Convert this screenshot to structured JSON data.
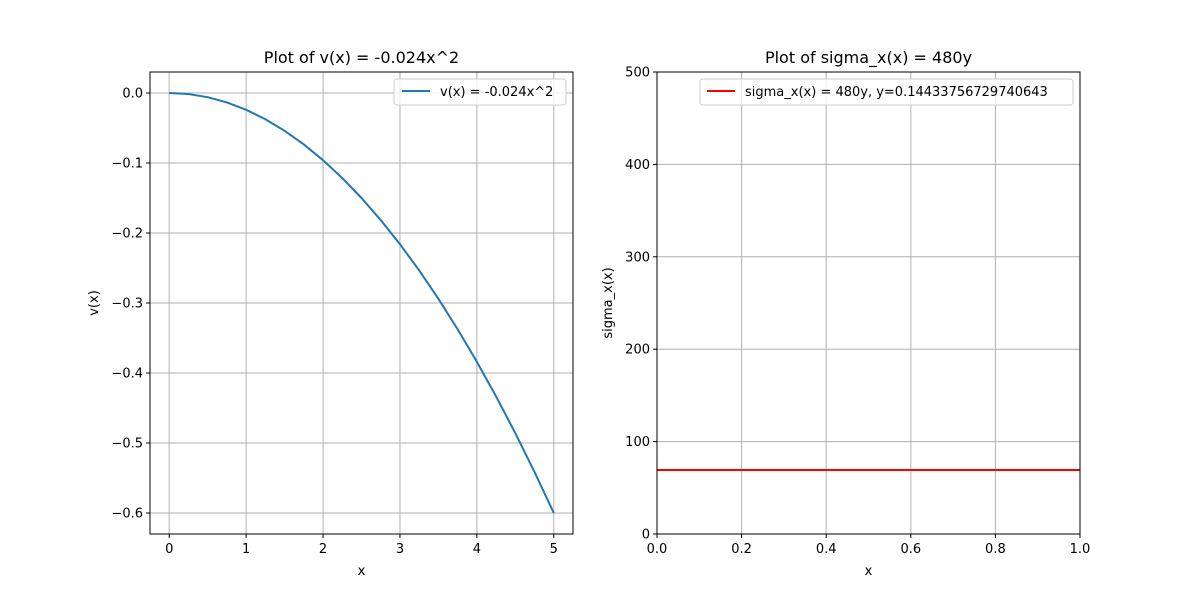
{
  "chart_data": [
    {
      "type": "line",
      "title": "Plot of v(x) = -0.024x^2",
      "xlabel": "x",
      "ylabel": "v(x)",
      "xlim": [
        -0.25,
        5.25
      ],
      "ylim": [
        -0.63,
        0.03
      ],
      "xticks": [
        0,
        1,
        2,
        3,
        4,
        5
      ],
      "xtick_labels": [
        "0",
        "1",
        "2",
        "3",
        "4",
        "5"
      ],
      "yticks": [
        0.0,
        -0.1,
        -0.2,
        -0.3,
        -0.4,
        -0.5,
        -0.6
      ],
      "ytick_labels": [
        "0.0",
        "−0.1",
        "−0.2",
        "−0.3",
        "−0.4",
        "−0.5",
        "−0.6"
      ],
      "grid": true,
      "legend_position": "upper-right",
      "series": [
        {
          "name": "v(x) = -0.024x^2",
          "color": "#1f77b4",
          "x": [
            0,
            0.25,
            0.5,
            0.75,
            1,
            1.25,
            1.5,
            1.75,
            2,
            2.25,
            2.5,
            2.75,
            3,
            3.25,
            3.5,
            3.75,
            4,
            4.25,
            4.5,
            4.75,
            5
          ],
          "y": [
            0,
            -0.0015,
            -0.006,
            -0.0135,
            -0.024,
            -0.0375,
            -0.054,
            -0.0735,
            -0.096,
            -0.1215,
            -0.15,
            -0.1815,
            -0.216,
            -0.2535,
            -0.294,
            -0.3375,
            -0.384,
            -0.4335,
            -0.486,
            -0.5415,
            -0.6
          ]
        }
      ]
    },
    {
      "type": "line",
      "title": "Plot of sigma_x(x) = 480y",
      "xlabel": "x",
      "ylabel": "sigma_x(x)",
      "xlim": [
        0,
        1
      ],
      "ylim": [
        0,
        500
      ],
      "xticks": [
        0,
        0.2,
        0.4,
        0.6,
        0.8,
        1.0
      ],
      "xtick_labels": [
        "0.0",
        "0.2",
        "0.4",
        "0.6",
        "0.8",
        "1.0"
      ],
      "yticks": [
        0,
        100,
        200,
        300,
        400,
        500
      ],
      "ytick_labels": [
        "0",
        "100",
        "200",
        "300",
        "400",
        "500"
      ],
      "grid": true,
      "legend_position": "upper-right",
      "series": [
        {
          "name": "sigma_x(x) = 480y, y=0.14433756729740643",
          "color": "#ff0000",
          "x": [
            0,
            1
          ],
          "y": [
            69.282,
            69.282
          ]
        }
      ]
    }
  ]
}
